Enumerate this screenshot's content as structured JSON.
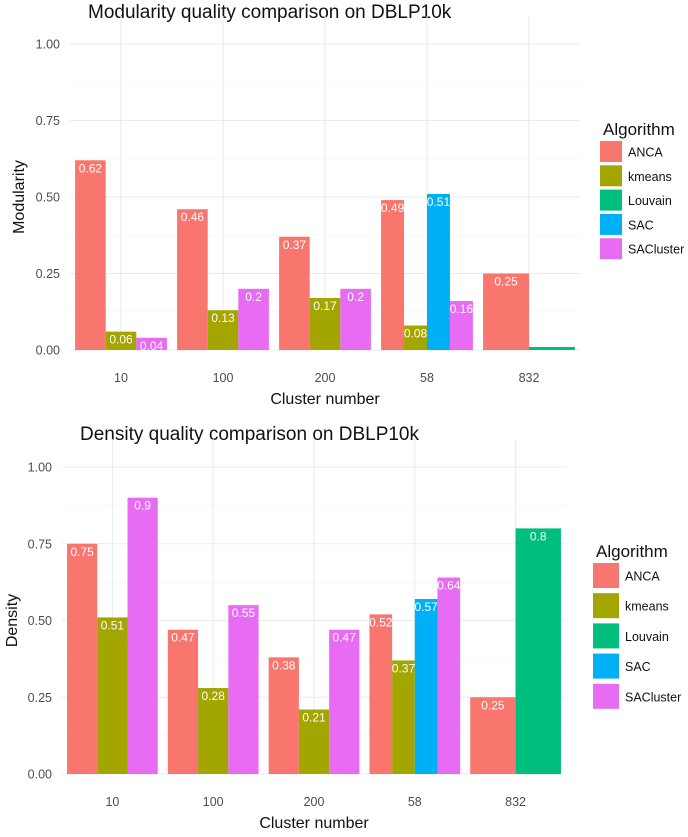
{
  "legend_title": "Algorithm",
  "series_colors": {
    "ANCA": "#F8766D",
    "kmeans": "#A3A500",
    "Louvain": "#00BF7D",
    "SAC": "#00B0F6",
    "SACluster": "#E76BF3"
  },
  "chart_data": [
    {
      "type": "bar",
      "title": "Modularity quality comparison on DBLP10k",
      "xlabel": "Cluster number",
      "ylabel": "Modularity",
      "ylim": [
        0,
        1
      ],
      "yticks": [
        "0.00",
        "0.25",
        "0.50",
        "0.75",
        "1.00"
      ],
      "grid": true,
      "legend_position": "right",
      "groups": [
        {
          "category": "10",
          "bars": [
            {
              "series": "ANCA",
              "value": 0.62,
              "label": "0.62"
            },
            {
              "series": "kmeans",
              "value": 0.06,
              "label": "0.06"
            },
            {
              "series": "SACluster",
              "value": 0.04,
              "label": "0.04"
            }
          ]
        },
        {
          "category": "100",
          "bars": [
            {
              "series": "ANCA",
              "value": 0.46,
              "label": "0.46"
            },
            {
              "series": "kmeans",
              "value": 0.13,
              "label": "0.13"
            },
            {
              "series": "SACluster",
              "value": 0.2,
              "label": "0.2"
            }
          ]
        },
        {
          "category": "200",
          "bars": [
            {
              "series": "ANCA",
              "value": 0.37,
              "label": "0.37"
            },
            {
              "series": "kmeans",
              "value": 0.17,
              "label": "0.17"
            },
            {
              "series": "SACluster",
              "value": 0.2,
              "label": "0.2"
            }
          ]
        },
        {
          "category": "58",
          "bars": [
            {
              "series": "ANCA",
              "value": 0.49,
              "label": "0.49"
            },
            {
              "series": "kmeans",
              "value": 0.08,
              "label": "0.08"
            },
            {
              "series": "SAC",
              "value": 0.51,
              "label": "0.51"
            },
            {
              "series": "SACluster",
              "value": 0.16,
              "label": "0.16"
            }
          ]
        },
        {
          "category": "832",
          "bars": [
            {
              "series": "ANCA",
              "value": 0.25,
              "label": "0.25"
            },
            {
              "series": "Louvain",
              "value": 0.01,
              "label": "0.01"
            }
          ]
        }
      ]
    },
    {
      "type": "bar",
      "title": "Density quality comparison on DBLP10k",
      "xlabel": "Cluster number",
      "ylabel": "Density",
      "ylim": [
        0,
        1
      ],
      "yticks": [
        "0.00",
        "0.25",
        "0.50",
        "0.75",
        "1.00"
      ],
      "grid": true,
      "legend_position": "right",
      "groups": [
        {
          "category": "10",
          "bars": [
            {
              "series": "ANCA",
              "value": 0.75,
              "label": "0.75"
            },
            {
              "series": "kmeans",
              "value": 0.51,
              "label": "0.51"
            },
            {
              "series": "SACluster",
              "value": 0.9,
              "label": "0.9"
            }
          ]
        },
        {
          "category": "100",
          "bars": [
            {
              "series": "ANCA",
              "value": 0.47,
              "label": "0.47"
            },
            {
              "series": "kmeans",
              "value": 0.28,
              "label": "0.28"
            },
            {
              "series": "SACluster",
              "value": 0.55,
              "label": "0.55"
            }
          ]
        },
        {
          "category": "200",
          "bars": [
            {
              "series": "ANCA",
              "value": 0.38,
              "label": "0.38"
            },
            {
              "series": "kmeans",
              "value": 0.21,
              "label": "0.21"
            },
            {
              "series": "SACluster",
              "value": 0.47,
              "label": "0.47"
            }
          ]
        },
        {
          "category": "58",
          "bars": [
            {
              "series": "ANCA",
              "value": 0.52,
              "label": "0.52"
            },
            {
              "series": "kmeans",
              "value": 0.37,
              "label": "0.37"
            },
            {
              "series": "SAC",
              "value": 0.57,
              "label": "0.57"
            },
            {
              "series": "SACluster",
              "value": 0.64,
              "label": "0.64"
            }
          ]
        },
        {
          "category": "832",
          "bars": [
            {
              "series": "ANCA",
              "value": 0.25,
              "label": "0.25"
            },
            {
              "series": "Louvain",
              "value": 0.8,
              "label": "0.8"
            }
          ]
        }
      ]
    }
  ]
}
